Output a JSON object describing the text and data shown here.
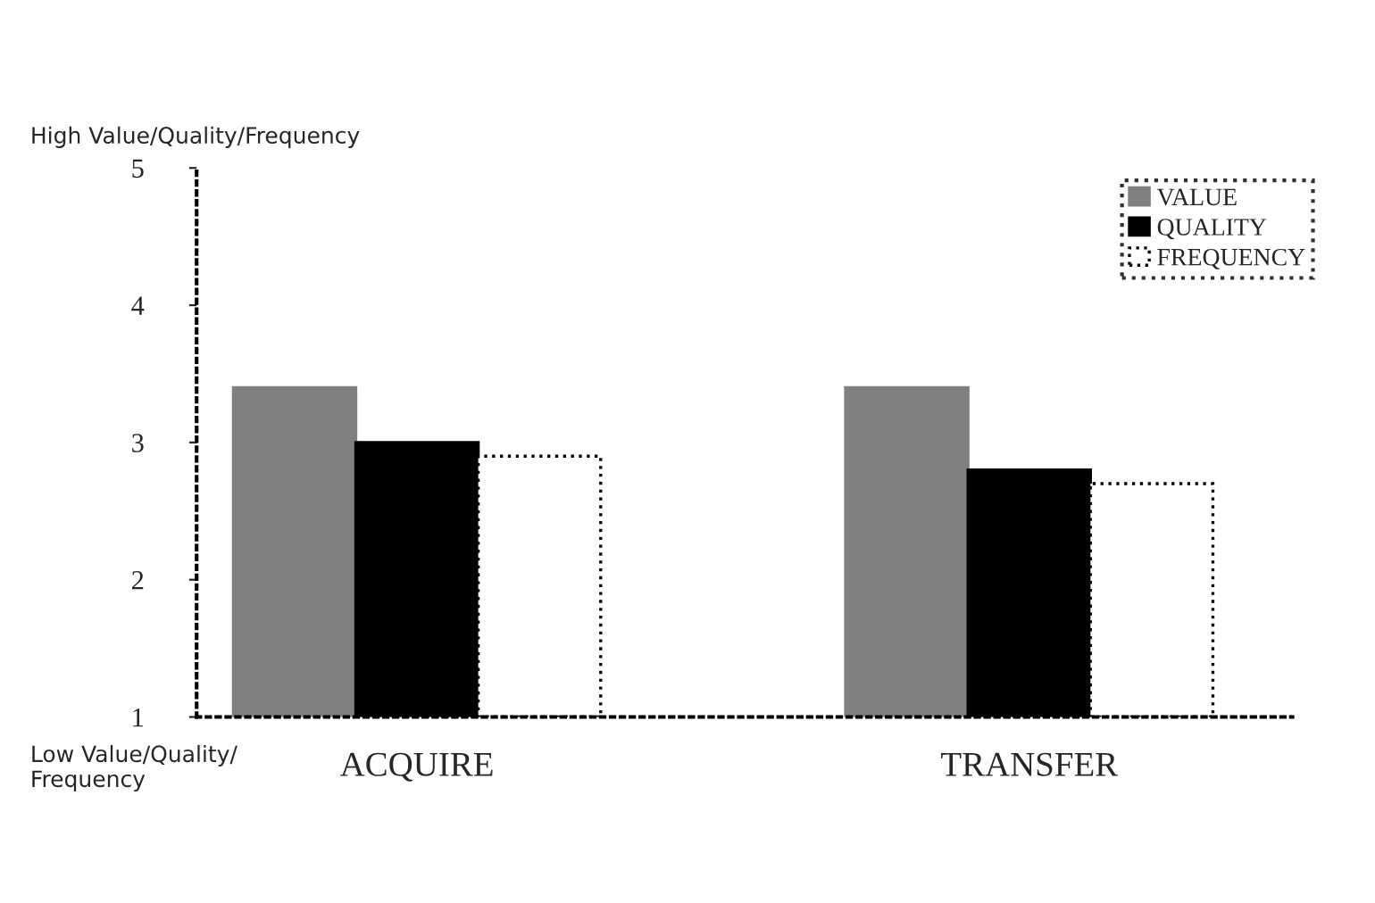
{
  "chart_data": {
    "type": "bar",
    "categories": [
      "ACQUIRE",
      "TRANSFER"
    ],
    "series": [
      {
        "name": "VALUE",
        "color": "#808080",
        "values": [
          3.4,
          3.4
        ]
      },
      {
        "name": "QUALITY",
        "color": "#000000",
        "values": [
          3.0,
          2.8
        ]
      },
      {
        "name": "FREQUENCY",
        "color": "#ffffff",
        "values": [
          2.9,
          2.7
        ]
      }
    ],
    "ylim": [
      1,
      5
    ],
    "yticks": [
      1,
      2,
      3,
      4,
      5
    ],
    "annotations": [
      "High Value/Quality/Frequency",
      "Low Value/Quality/\nFrequency"
    ],
    "legend": "top right",
    "grid": false
  }
}
